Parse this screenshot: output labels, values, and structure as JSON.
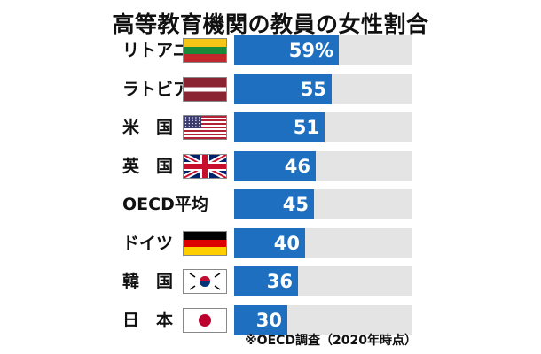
{
  "chart_data": {
    "type": "bar",
    "orientation": "horizontal",
    "title": "高等教育機関の教員の女性割合",
    "categories": [
      "リトアニア",
      "ラトビア",
      "米　国",
      "英　国",
      "OECD平均",
      "ドイツ",
      "韓　国",
      "日　本"
    ],
    "values": [
      59,
      55,
      51,
      46,
      45,
      40,
      36,
      30
    ],
    "value_labels": [
      "59%",
      "55",
      "51",
      "46",
      "45",
      "40",
      "36",
      "30"
    ],
    "flags": [
      "lithuania-flag",
      "latvia-flag",
      "usa-flag",
      "uk-flag",
      "",
      "germany-flag",
      "korea-flag",
      "japan-flag"
    ],
    "xlim": [
      0,
      100
    ],
    "note": "※OECD調査（2020年時点）",
    "colors": {
      "bar": "#1f6fc0",
      "track": "#e4e4e4"
    }
  }
}
